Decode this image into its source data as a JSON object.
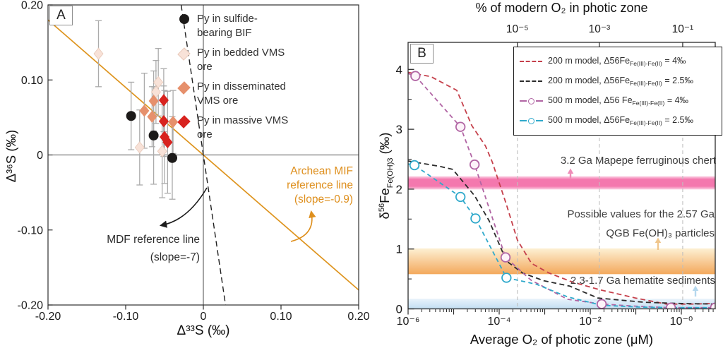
{
  "chart_data": [
    {
      "type": "scatter",
      "panel_label": "A",
      "xlabel": "Δ³³S (‰)",
      "ylabel": "Δ³⁶S (‰)",
      "xlim": [
        -0.2,
        0.2
      ],
      "ylim": [
        -0.2,
        0.2
      ],
      "x_ticks": {
        "values": [
          -0.2,
          -0.1,
          0,
          0.1,
          0.2
        ],
        "labels": [
          "-0.20",
          "-0.10",
          "0",
          "0.10",
          "0.20"
        ]
      },
      "y_ticks": {
        "values": [
          -0.2,
          -0.1,
          0,
          0.1,
          0.2
        ],
        "labels": [
          "-0.20",
          "-0.10",
          "0",
          "0.10",
          "0.20"
        ]
      },
      "reference_lines": [
        {
          "name": "Archean MIF reference line",
          "slope": -0.9,
          "style": "solid",
          "color": "#de941e"
        },
        {
          "name": "MDF reference line",
          "slope": -7,
          "style": "dashed",
          "color": "#1f1f1f"
        }
      ],
      "annotations": {
        "mif": {
          "lines": [
            "Archean MIF",
            "reference line",
            "(slope=-0.9)"
          ],
          "color": "#de8f1d"
        },
        "mdf": {
          "lines": [
            "MDF reference line",
            "(slope=-7)"
          ],
          "color": "#2c2c2c"
        }
      },
      "legend": [
        {
          "label_lines": [
            "Py in sulfide-",
            "bearing BIF"
          ],
          "marker": "circle",
          "color": "#1c1a19",
          "stroke": "#1c1a19"
        },
        {
          "label_lines": [
            "Py in bedded VMS",
            "ore"
          ],
          "marker": "diamond",
          "color": "#f8e2d8",
          "stroke": "#e8c9b9"
        },
        {
          "label_lines": [
            "Py in disseminated",
            "VMS ore"
          ],
          "marker": "diamond",
          "color": "#e6906c",
          "stroke": "#e6906c"
        },
        {
          "label_lines": [
            "Py in massive VMS",
            "ore"
          ],
          "marker": "diamond",
          "color": "#d8231f",
          "stroke": "#d8231f"
        }
      ],
      "series": [
        {
          "name": "Py in sulfide-bearing BIF",
          "marker": "circle",
          "color": "#1c1a19",
          "stroke": "#1c1a19",
          "points": [
            {
              "x": -0.093,
              "y": 0.052,
              "err": 0.045
            },
            {
              "x": -0.064,
              "y": 0.026,
              "err": 0.065
            },
            {
              "x": -0.04,
              "y": -0.004,
              "err": 0.055
            }
          ]
        },
        {
          "name": "Py in bedded VMS ore",
          "marker": "diamond",
          "color": "#f8e2d8",
          "stroke": "#e8c9b9",
          "points": [
            {
              "x": -0.135,
              "y": 0.135,
              "err": 0.044
            },
            {
              "x": -0.058,
              "y": 0.097,
              "err": 0.045
            },
            {
              "x": -0.061,
              "y": 0.084,
              "err": 0.042
            },
            {
              "x": -0.082,
              "y": 0.01,
              "err": 0.05
            },
            {
              "x": -0.053,
              "y": 0.005,
              "err": 0.062
            }
          ]
        },
        {
          "name": "Py in disseminated VMS ore",
          "marker": "diamond",
          "color": "#e6906c",
          "stroke": "#e6906c",
          "points": [
            {
              "x": -0.076,
              "y": 0.059,
              "err": 0.05
            },
            {
              "x": -0.064,
              "y": 0.072,
              "err": 0.04
            },
            {
              "x": -0.066,
              "y": 0.051,
              "err": 0.04
            },
            {
              "x": -0.039,
              "y": 0.044,
              "err": 0.042
            }
          ]
        },
        {
          "name": "Py in massive VMS ore",
          "marker": "diamond",
          "color": "#d8231f",
          "stroke": "#d8231f",
          "points": [
            {
              "x": -0.051,
              "y": 0.073,
              "err": 0.042
            },
            {
              "x": -0.051,
              "y": 0.045,
              "err": 0.047
            },
            {
              "x": -0.05,
              "y": 0.024,
              "err": 0.062
            },
            {
              "x": -0.046,
              "y": 0.017,
              "err": 0.068
            }
          ]
        }
      ]
    },
    {
      "type": "line",
      "panel_label": "B",
      "xscale": "log",
      "xlabel": "Average O₂ of photic zone (μM)",
      "ylabel_parts": {
        "d": "δ",
        "sup": "56",
        "fe": "Fe",
        "sub": "Fe(OH)3",
        "post": " (‰)"
      },
      "xlim_log": [
        -6,
        0.74
      ],
      "ylim": [
        0,
        4.45
      ],
      "x_ticks": {
        "values_log": [
          -6,
          -4,
          -2,
          0
        ],
        "labels": [
          "10⁻⁶",
          "10⁻⁴",
          "10⁻²",
          "10⁻⁰"
        ]
      },
      "y_ticks": {
        "values": [
          0,
          1,
          2,
          3,
          4
        ],
        "labels": [
          "0",
          "1",
          "2",
          "3",
          "4"
        ]
      },
      "top_axis": {
        "title": "% of modern O₂ in photic zone",
        "ticks": [
          {
            "label": "10⁻⁵",
            "pos_log": -3.6
          },
          {
            "label": "10⁻³",
            "pos_log": -1.8
          },
          {
            "label": "10⁻¹",
            "pos_log": 0.03
          }
        ]
      },
      "legend": [
        {
          "pre": "200 m model, Δ56Fe",
          "sub": "Fe(III)-Fe(II)",
          "post": " = 4‰",
          "color": "#c5404b",
          "marker": "dash"
        },
        {
          "pre": "200 m model, Δ56Fe",
          "sub": "Fe(III)-Fe(II)",
          "post": " = 2.5‰",
          "color": "#2b2b2b",
          "marker": "dash"
        },
        {
          "pre": "500 m model, Δ56 Fe",
          "sub": "Fe(III)-Fe(II)",
          "post": " = 4‰",
          "color": "#b165a4",
          "marker": "dash-circle"
        },
        {
          "pre": "500 m model, Δ56Fe",
          "sub": "Fe(III)-Fe(II)",
          "post": " = 2.5‰",
          "color": "#2fa9cb",
          "marker": "dash-circle"
        }
      ],
      "bands": [
        {
          "label": "3.2 Ga Mapepe ferruginous chert",
          "y_from": 2.03,
          "y_to": 2.18,
          "core_color": "#f478ae",
          "edge_color": "#fbd2e5"
        },
        {
          "label": "Possible values for the 2.57 Ga QGB Fe(OH)₃ particles",
          "y_from": 0.58,
          "y_to": 1.01,
          "top_color": "#fdf0d3",
          "bottom_color": "#f3a85c"
        },
        {
          "label": "2.3-1.7 Ga hematite sediments",
          "y_from": 0,
          "y_to": 0.17,
          "top_color": "#e9f3fb",
          "bottom_color": "#c2def2"
        }
      ],
      "annotations": [
        {
          "lines": [
            "3.2 Ga Mapepe ferruginous chert"
          ],
          "arrow_color": "#ef8cb7"
        },
        {
          "lines": [
            "Possible values for the 2.57 Ga",
            "QGB Fe(OH)₃ particles"
          ],
          "arrow_color": "#f0c68c"
        },
        {
          "lines": [
            "2.3-1.7 Ga hematite sediments"
          ],
          "arrow_color": "#b5d8ee"
        }
      ],
      "series": [
        {
          "name": "200 m model, Δ56Fe Fe(III)-Fe(II) = 4‰",
          "color": "#c5404b",
          "marker": "none",
          "marker_fill": "#ffffff",
          "points_log": [
            [
              -6,
              3.95
            ],
            [
              -5.5,
              3.88
            ],
            [
              -4.93,
              3.65
            ],
            [
              -4.6,
              3.06
            ],
            [
              -4.3,
              2.72
            ],
            [
              -4.15,
              2.45
            ],
            [
              -3.84,
              1.74
            ],
            [
              -3.6,
              1.15
            ],
            [
              -3.29,
              0.76
            ],
            [
              -2.91,
              0.6
            ],
            [
              -2.4,
              0.45
            ],
            [
              -1.79,
              0.32
            ],
            [
              -1.0,
              0.18
            ],
            [
              -0.33,
              0.08
            ],
            [
              0.2,
              0.08
            ],
            [
              0.74,
              0.09
            ]
          ],
          "marker_points_log": []
        },
        {
          "name": "200 m model, Δ56Fe Fe(III)-Fe(II) = 2.5‰",
          "color": "#2b2b2b",
          "marker": "none",
          "marker_fill": "#ffffff",
          "points_log": [
            [
              -6,
              2.47
            ],
            [
              -5.3,
              2.38
            ],
            [
              -5.02,
              2.33
            ],
            [
              -4.54,
              1.89
            ],
            [
              -4.22,
              1.47
            ],
            [
              -3.84,
              0.8
            ],
            [
              -3.49,
              0.6
            ],
            [
              -3.02,
              0.47
            ],
            [
              -2.45,
              0.38
            ],
            [
              -1.83,
              0.18
            ],
            [
              -0.8,
              0.11
            ],
            [
              0,
              0.09
            ],
            [
              0.74,
              0.08
            ]
          ],
          "marker_points_log": []
        },
        {
          "name": "500 m model, Δ56 Fe Fe(III)-Fe(II) = 4‰",
          "color": "#b165a4",
          "marker": "circle",
          "marker_fill": "#fdf3f9",
          "points_log": [
            [
              -6,
              3.93
            ],
            [
              -5.84,
              3.89
            ],
            [
              -4.85,
              3.04
            ],
            [
              -4.54,
              2.41
            ],
            [
              -3.86,
              0.86
            ],
            [
              -3.3,
              0.48
            ],
            [
              -2.5,
              0.16
            ],
            [
              -1.75,
              0.08
            ],
            [
              -0.9,
              0.04
            ],
            [
              -0.23,
              0.02
            ],
            [
              0.74,
              0.02
            ]
          ],
          "marker_points_log": [
            [
              -5.84,
              3.89
            ],
            [
              -4.85,
              3.04
            ],
            [
              -4.54,
              2.41
            ],
            [
              -3.86,
              0.86
            ],
            [
              -1.75,
              0.08
            ],
            [
              -0.23,
              0.02
            ],
            [
              0.74,
              0.02
            ]
          ]
        },
        {
          "name": "500 m model, Δ56Fe Fe(III)-Fe(II) = 2.5‰",
          "color": "#2fa9cb",
          "marker": "circle",
          "marker_fill": "#ffffff",
          "points_log": [
            [
              -6,
              2.42
            ],
            [
              -5.86,
              2.4
            ],
            [
              -4.85,
              1.87
            ],
            [
              -4.52,
              1.51
            ],
            [
              -3.84,
              0.52
            ],
            [
              -3.18,
              0.41
            ],
            [
              -2.5,
              0.2
            ],
            [
              -1.75,
              0.06
            ],
            [
              -0.9,
              0.03
            ],
            [
              -0.2,
              0.02
            ],
            [
              0.74,
              0.02
            ]
          ],
          "marker_points_log": [
            [
              -5.86,
              2.4
            ],
            [
              -4.85,
              1.87
            ],
            [
              -4.52,
              1.51
            ],
            [
              -3.84,
              0.52
            ]
          ]
        }
      ]
    }
  ]
}
